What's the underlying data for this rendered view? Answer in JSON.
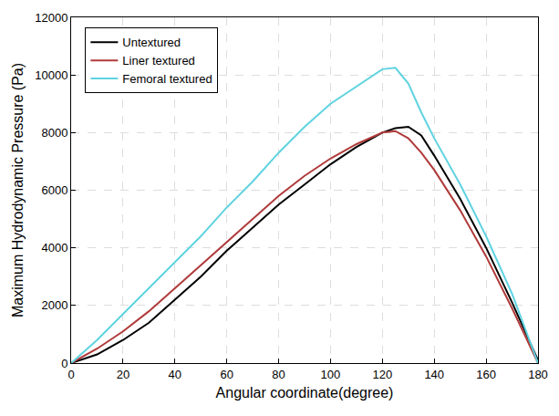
{
  "chart_data": {
    "type": "line",
    "x_label": "Angular coordinate(degree)",
    "y_label": "Maximum Hydrodynamic Pressure (Pa)",
    "x": [
      0,
      10,
      20,
      30,
      40,
      50,
      60,
      70,
      80,
      90,
      100,
      110,
      120,
      125,
      130,
      135,
      140,
      150,
      160,
      170,
      180
    ],
    "series": [
      {
        "name": "Untextured",
        "color": "#000000",
        "values": [
          0,
          300,
          800,
          1400,
          2200,
          3000,
          3900,
          4700,
          5500,
          6200,
          6900,
          7500,
          8000,
          8150,
          8200,
          7900,
          7200,
          5700,
          4000,
          2100,
          100
        ]
      },
      {
        "name": "Liner textured",
        "color": "#b03a3a",
        "values": [
          0,
          500,
          1100,
          1800,
          2600,
          3400,
          4200,
          5000,
          5800,
          6500,
          7100,
          7600,
          8000,
          8050,
          7800,
          7300,
          6700,
          5300,
          3700,
          1900,
          0
        ]
      },
      {
        "name": "Femoral textured",
        "color": "#5fd3e0",
        "values": [
          0,
          800,
          1700,
          2600,
          3500,
          4400,
          5400,
          6300,
          7300,
          8200,
          9000,
          9600,
          10200,
          10250,
          9700,
          8700,
          7800,
          6200,
          4400,
          2400,
          0
        ]
      }
    ],
    "xlim": [
      0,
      180
    ],
    "xticks": [
      0,
      20,
      40,
      60,
      80,
      100,
      120,
      140,
      160,
      180
    ],
    "ylim": [
      0,
      12000
    ],
    "yticks": [
      0,
      2000,
      4000,
      6000,
      8000,
      10000,
      12000
    ],
    "grid": true,
    "legend": "top-left"
  }
}
